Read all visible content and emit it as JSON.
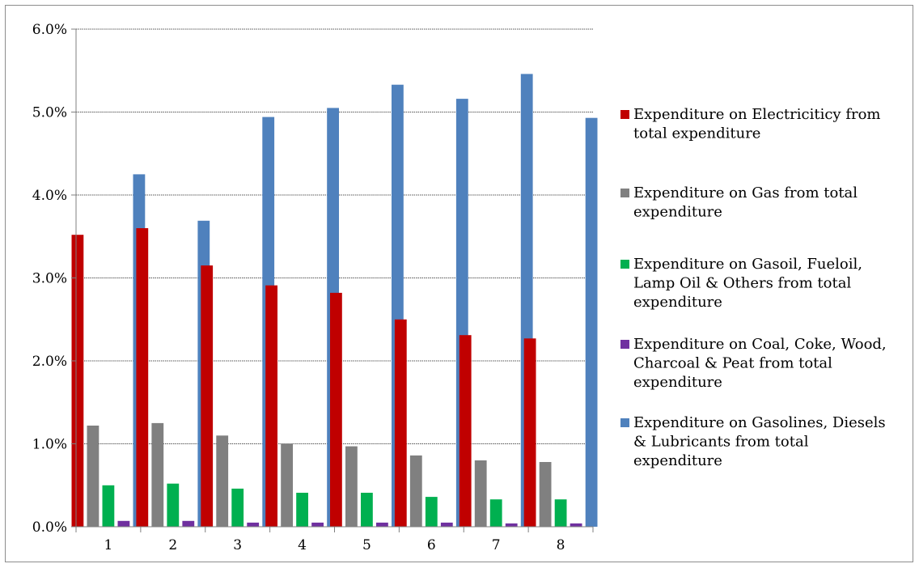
{
  "chart_data": {
    "type": "bar",
    "title": "",
    "xlabel": "",
    "ylabel": "",
    "ylim": [
      0,
      6.0
    ],
    "y_ticks": [
      "0.0%",
      "1.0%",
      "2.0%",
      "3.0%",
      "4.0%",
      "5.0%",
      "6.0%"
    ],
    "y_tick_values": [
      0,
      1,
      2,
      3,
      4,
      5,
      6
    ],
    "y_unit": "%",
    "grid": true,
    "legend_position": "right",
    "categories": [
      "1",
      "2",
      "3",
      "4",
      "5",
      "6",
      "7",
      "8"
    ],
    "series": [
      {
        "name": "Expenditure on Electriciticy from total expenditure",
        "legend_lines": [
          "Expenditure on Electriciticy from",
          "total expenditure"
        ],
        "color": "#c00000",
        "values": [
          3.52,
          3.6,
          3.15,
          2.91,
          2.82,
          2.5,
          2.31,
          2.27
        ]
      },
      {
        "name": "Expenditure on Gas from total expenditure",
        "legend_lines": [
          "Expenditure on Gas from total",
          "expenditure"
        ],
        "color": "#808080",
        "values": [
          1.22,
          1.25,
          1.1,
          1.0,
          0.97,
          0.86,
          0.8,
          0.78
        ]
      },
      {
        "name": "Expenditure on Gasoil, Fueloil, Lamp Oil & Others from total expenditure",
        "legend_lines": [
          "Expenditure on Gasoil, Fueloil,",
          "Lamp Oil & Others from total",
          "expenditure"
        ],
        "color": "#00b050",
        "values": [
          0.5,
          0.52,
          0.46,
          0.41,
          0.41,
          0.36,
          0.33,
          0.33
        ]
      },
      {
        "name": "Expenditure on Coal, Coke, Wood, Charcoal & Peat from total expenditure",
        "legend_lines": [
          "Expenditure on Coal, Coke, Wood,",
          "Charcoal & Peat from total",
          "expenditure"
        ],
        "color": "#7030a0",
        "values": [
          0.07,
          0.07,
          0.05,
          0.05,
          0.05,
          0.05,
          0.04,
          0.04
        ]
      },
      {
        "name": "Expenditure on Gasolines, Diesels & Lubricants from total expenditure",
        "legend_lines": [
          "Expenditure on Gasolines, Diesels",
          "& Lubricants from total",
          "expenditure"
        ],
        "color": "#4f81bd",
        "values": [
          4.25,
          3.69,
          4.94,
          5.05,
          5.33,
          5.16,
          5.46,
          4.93
        ]
      }
    ]
  }
}
